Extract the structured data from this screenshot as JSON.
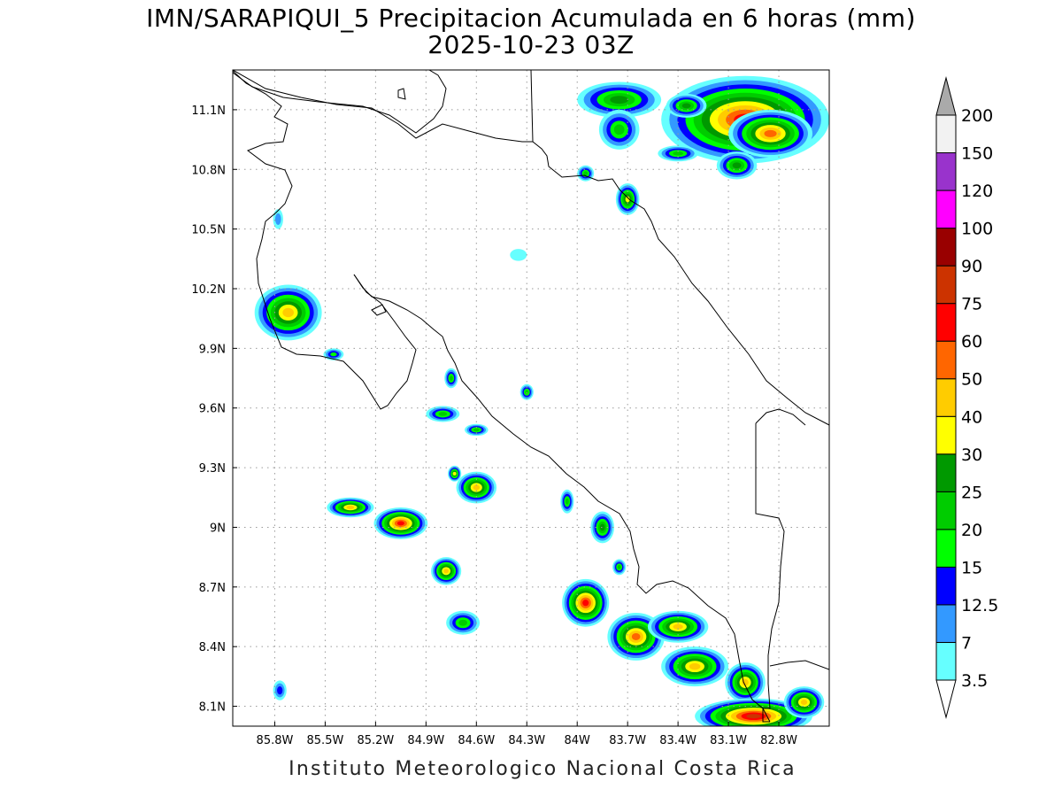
{
  "title": {
    "line1": "IMN/SARAPIQUI_5 Precipitacion Acumulada en 6 horas (mm)",
    "line2": "2025-10-23 03Z"
  },
  "footer": "Instituto Meteorologico Nacional Costa Rica",
  "map": {
    "lon_range": [
      -86.05,
      -82.5
    ],
    "lat_range": [
      8.0,
      11.3
    ],
    "lat_ticks": [
      {
        "value": 11.1,
        "label": "11.1N"
      },
      {
        "value": 10.8,
        "label": "10.8N"
      },
      {
        "value": 10.5,
        "label": "10.5N"
      },
      {
        "value": 10.2,
        "label": "10.2N"
      },
      {
        "value": 9.9,
        "label": "9.9N"
      },
      {
        "value": 9.6,
        "label": "9.6N"
      },
      {
        "value": 9.3,
        "label": "9.3N"
      },
      {
        "value": 9.0,
        "label": "9N"
      },
      {
        "value": 8.7,
        "label": "8.7N"
      },
      {
        "value": 8.4,
        "label": "8.4N"
      },
      {
        "value": 8.1,
        "label": "8.1N"
      }
    ],
    "lon_ticks": [
      {
        "value": -85.8,
        "label": "85.8W"
      },
      {
        "value": -85.5,
        "label": "85.5W"
      },
      {
        "value": -85.2,
        "label": "85.2W"
      },
      {
        "value": -84.9,
        "label": "84.9W"
      },
      {
        "value": -84.6,
        "label": "84.6W"
      },
      {
        "value": -84.3,
        "label": "84.3W"
      },
      {
        "value": -84.0,
        "label": "84W"
      },
      {
        "value": -83.7,
        "label": "83.7W"
      },
      {
        "value": -83.4,
        "label": "83.4W"
      },
      {
        "value": -83.1,
        "label": "83.1W"
      },
      {
        "value": -82.8,
        "label": "82.8W"
      }
    ],
    "grid": true
  },
  "colorbar": {
    "labels": [
      "3.5",
      "7",
      "12.5",
      "15",
      "20",
      "25",
      "30",
      "40",
      "50",
      "60",
      "75",
      "90",
      "100",
      "120",
      "150",
      "200"
    ],
    "colors": [
      "#66ffff",
      "#3399ff",
      "#0000ff",
      "#00ff00",
      "#00cc00",
      "#009900",
      "#ffff00",
      "#ffcc00",
      "#ff6600",
      "#ff0000",
      "#cc3300",
      "#990000",
      "#ff00ff",
      "#9933cc",
      "#f2f2f2"
    ],
    "under_color": "#ffffff",
    "over_color": "#aaaaaa"
  },
  "precip_cells": [
    {
      "lon": -83.0,
      "lat": 11.05,
      "rx": 0.5,
      "ry": 0.22,
      "peak": 60
    },
    {
      "lon": -82.85,
      "lat": 10.98,
      "rx": 0.25,
      "ry": 0.12,
      "peak": 50
    },
    {
      "lon": -83.75,
      "lat": 11.15,
      "rx": 0.25,
      "ry": 0.09,
      "peak": 25
    },
    {
      "lon": -83.35,
      "lat": 11.12,
      "rx": 0.12,
      "ry": 0.06,
      "peak": 25
    },
    {
      "lon": -83.75,
      "lat": 11.0,
      "rx": 0.12,
      "ry": 0.1,
      "peak": 20
    },
    {
      "lon": -83.4,
      "lat": 10.88,
      "rx": 0.12,
      "ry": 0.04,
      "peak": 20
    },
    {
      "lon": -83.7,
      "lat": 10.65,
      "rx": 0.07,
      "ry": 0.08,
      "peak": 30
    },
    {
      "lon": -83.95,
      "lat": 10.78,
      "rx": 0.05,
      "ry": 0.04,
      "peak": 20
    },
    {
      "lon": -83.05,
      "lat": 10.82,
      "rx": 0.12,
      "ry": 0.07,
      "peak": 25
    },
    {
      "lon": -85.72,
      "lat": 10.08,
      "rx": 0.2,
      "ry": 0.14,
      "peak": 40
    },
    {
      "lon": -85.45,
      "lat": 9.87,
      "rx": 0.06,
      "ry": 0.03,
      "peak": 15
    },
    {
      "lon": -84.75,
      "lat": 9.75,
      "rx": 0.04,
      "ry": 0.05,
      "peak": 20
    },
    {
      "lon": -84.8,
      "lat": 9.57,
      "rx": 0.1,
      "ry": 0.04,
      "peak": 20
    },
    {
      "lon": -84.6,
      "lat": 9.49,
      "rx": 0.07,
      "ry": 0.03,
      "peak": 20
    },
    {
      "lon": -84.3,
      "lat": 9.68,
      "rx": 0.04,
      "ry": 0.04,
      "peak": 20
    },
    {
      "lon": -84.6,
      "lat": 9.2,
      "rx": 0.12,
      "ry": 0.08,
      "peak": 40
    },
    {
      "lon": -84.73,
      "lat": 9.27,
      "rx": 0.04,
      "ry": 0.04,
      "peak": 30
    },
    {
      "lon": -85.35,
      "lat": 9.1,
      "rx": 0.14,
      "ry": 0.05,
      "peak": 40
    },
    {
      "lon": -85.05,
      "lat": 9.02,
      "rx": 0.16,
      "ry": 0.08,
      "peak": 60
    },
    {
      "lon": -84.78,
      "lat": 8.78,
      "rx": 0.09,
      "ry": 0.07,
      "peak": 40
    },
    {
      "lon": -84.68,
      "lat": 8.52,
      "rx": 0.1,
      "ry": 0.06,
      "peak": 20
    },
    {
      "lon": -83.85,
      "lat": 9.0,
      "rx": 0.07,
      "ry": 0.08,
      "peak": 25
    },
    {
      "lon": -84.06,
      "lat": 9.13,
      "rx": 0.04,
      "ry": 0.06,
      "peak": 20
    },
    {
      "lon": -83.75,
      "lat": 8.8,
      "rx": 0.04,
      "ry": 0.04,
      "peak": 20
    },
    {
      "lon": -83.95,
      "lat": 8.62,
      "rx": 0.14,
      "ry": 0.12,
      "peak": 60
    },
    {
      "lon": -83.65,
      "lat": 8.45,
      "rx": 0.17,
      "ry": 0.12,
      "peak": 50
    },
    {
      "lon": -83.4,
      "lat": 8.5,
      "rx": 0.18,
      "ry": 0.08,
      "peak": 40
    },
    {
      "lon": -83.3,
      "lat": 8.3,
      "rx": 0.2,
      "ry": 0.1,
      "peak": 40
    },
    {
      "lon": -83.0,
      "lat": 8.22,
      "rx": 0.12,
      "ry": 0.1,
      "peak": 40
    },
    {
      "lon": -82.95,
      "lat": 8.05,
      "rx": 0.35,
      "ry": 0.09,
      "peak": 75
    },
    {
      "lon": -82.65,
      "lat": 8.12,
      "rx": 0.12,
      "ry": 0.08,
      "peak": 40
    },
    {
      "lon": -85.77,
      "lat": 8.18,
      "rx": 0.04,
      "ry": 0.05,
      "peak": 12.5
    },
    {
      "lon": -84.35,
      "lat": 10.37,
      "rx": 0.05,
      "ry": 0.03,
      "peak": 3.5
    },
    {
      "lon": -85.78,
      "lat": 10.55,
      "rx": 0.03,
      "ry": 0.05,
      "peak": 7
    }
  ]
}
